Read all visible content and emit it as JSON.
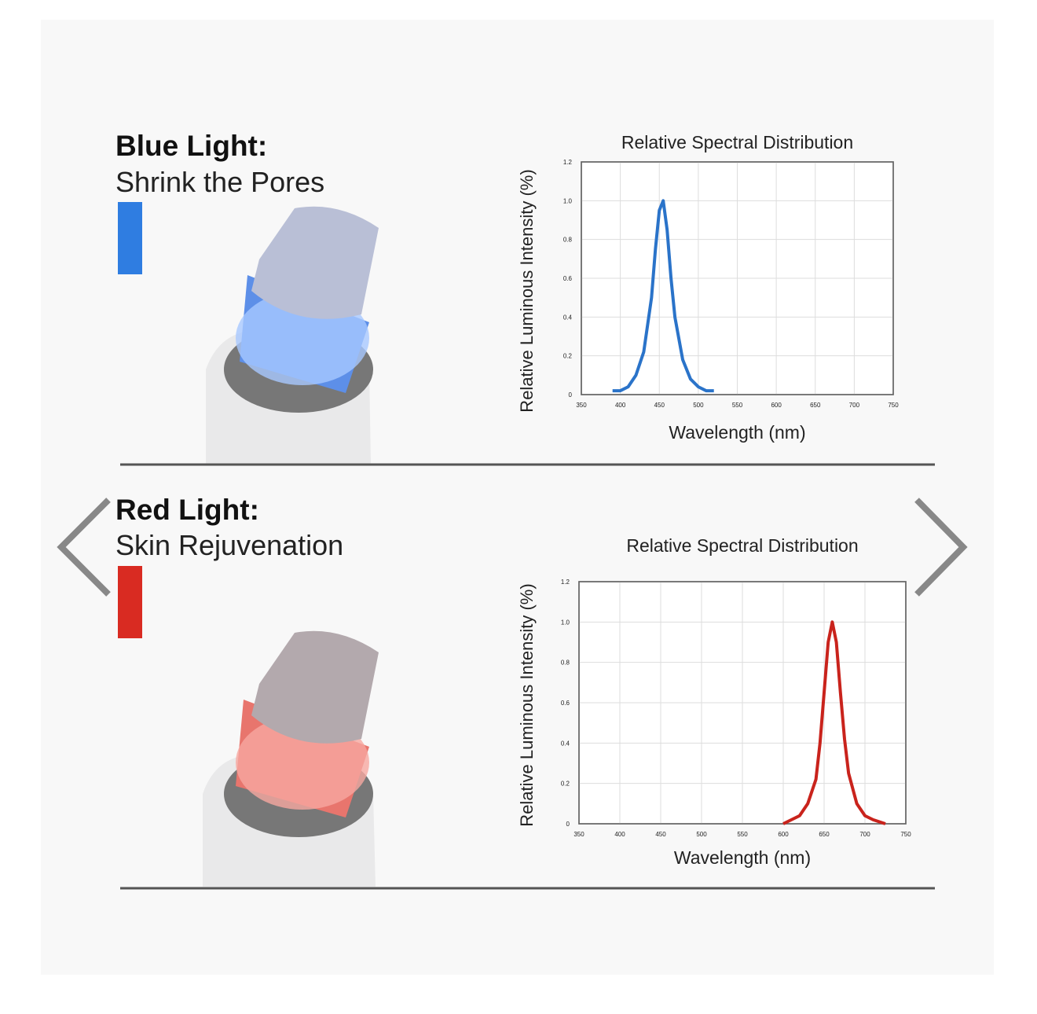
{
  "sections": [
    {
      "title": "Blue Light:",
      "subtitle": "Shrink the Pores",
      "swatch_color": "#2f7de1"
    },
    {
      "title": "Red Light:",
      "subtitle": "Skin Rejuvenation",
      "swatch_color": "#d92b22"
    }
  ],
  "chart_data": [
    {
      "type": "line",
      "title": "Relative Spectral Distribution",
      "x_label": "Wavelength (nm)",
      "y_label": "Relative Luminous Intensity (%)",
      "x": [
        390,
        400,
        410,
        420,
        430,
        440,
        445,
        450,
        455,
        460,
        465,
        470,
        480,
        490,
        500,
        510,
        520
      ],
      "series": [
        {
          "color": "#2a73c9",
          "values": [
            0.02,
            0.02,
            0.04,
            0.1,
            0.22,
            0.5,
            0.75,
            0.95,
            1.0,
            0.85,
            0.6,
            0.4,
            0.18,
            0.08,
            0.04,
            0.02,
            0.02
          ]
        }
      ],
      "xlim": [
        350,
        750
      ],
      "xticks": [
        350,
        400,
        450,
        500,
        550,
        600,
        650,
        700,
        750
      ],
      "ylim": [
        0,
        1.2
      ],
      "yticks": [
        0,
        0.2,
        0.4,
        0.6,
        0.8,
        {
          "value": 1,
          "label": "1.0"
        },
        1.2
      ],
      "grid": true
    },
    {
      "type": "line",
      "title": "Relative Spectral Distribution",
      "x_label": "Wavelength (nm)",
      "y_label": "Relative Luminous Intensity (%)",
      "x": [
        600,
        610,
        620,
        630,
        640,
        645,
        650,
        655,
        660,
        665,
        670,
        675,
        680,
        690,
        700,
        710,
        725
      ],
      "series": [
        {
          "color": "#c9231c",
          "values": [
            0.0,
            0.02,
            0.04,
            0.1,
            0.22,
            0.4,
            0.65,
            0.9,
            1.0,
            0.9,
            0.65,
            0.42,
            0.25,
            0.1,
            0.04,
            0.02,
            0.0
          ]
        }
      ],
      "xlim": [
        350,
        750
      ],
      "xticks": [
        350,
        400,
        450,
        500,
        550,
        600,
        650,
        700,
        750
      ],
      "ylim": [
        0,
        1.2
      ],
      "yticks": [
        0,
        0.2,
        0.4,
        0.6,
        0.8,
        {
          "value": 1,
          "label": "1.0"
        },
        1.2
      ],
      "grid": true
    }
  ]
}
